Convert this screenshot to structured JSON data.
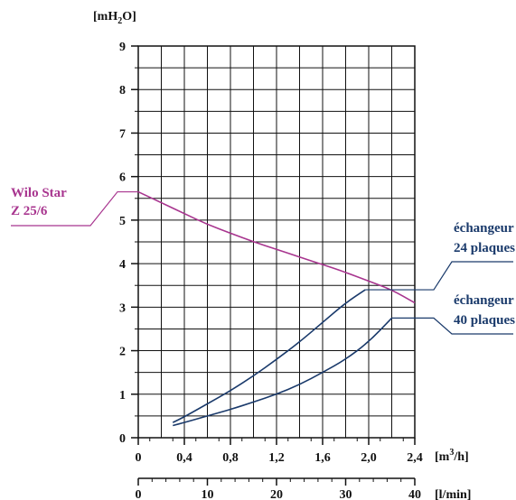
{
  "chart_data": {
    "type": "line",
    "y_unit": {
      "main": "[mH",
      "sub": "2",
      "tail": "O]"
    },
    "x_unit_primary": {
      "main": "[m",
      "sup": "3",
      "tail": "/h]"
    },
    "x_unit_secondary": "[l/min]",
    "xlim": [
      0,
      2.4
    ],
    "ylim": [
      0,
      9
    ],
    "x_ticks": [
      {
        "value": 0,
        "label": "0"
      },
      {
        "value": 0.4,
        "label": "0,4"
      },
      {
        "value": 0.8,
        "label": "0,8"
      },
      {
        "value": 1.2,
        "label": "1,2"
      },
      {
        "value": 1.6,
        "label": "1,6"
      },
      {
        "value": 2.0,
        "label": "2,0"
      },
      {
        "value": 2.4,
        "label": "2,4"
      }
    ],
    "x2_ticks": [
      {
        "value": 0,
        "label": "0"
      },
      {
        "value": 10,
        "label": "10"
      },
      {
        "value": 20,
        "label": "20"
      },
      {
        "value": 30,
        "label": "30"
      },
      {
        "value": 40,
        "label": "40"
      }
    ],
    "x2_lim": [
      0,
      40
    ],
    "y_ticks": [
      {
        "value": 0,
        "label": "0"
      },
      {
        "value": 1,
        "label": "1"
      },
      {
        "value": 2,
        "label": "2"
      },
      {
        "value": 3,
        "label": "3"
      },
      {
        "value": 4,
        "label": "4"
      },
      {
        "value": 5,
        "label": "5"
      },
      {
        "value": 6,
        "label": "6"
      },
      {
        "value": 7,
        "label": "7"
      },
      {
        "value": 8,
        "label": "8"
      },
      {
        "value": 9,
        "label": "9"
      }
    ],
    "grid": true,
    "series": [
      {
        "name": "Wilo Star Z 25/6",
        "label_lines": [
          "Wilo Star",
          "Z 25/6"
        ],
        "color": "#a8358f",
        "label_position": "left",
        "x": [
          0,
          0.2,
          0.4,
          0.6,
          0.8,
          1.0,
          1.2,
          1.4,
          1.6,
          1.8,
          2.0,
          2.2,
          2.4
        ],
        "y": [
          5.65,
          5.4,
          5.15,
          4.9,
          4.7,
          4.5,
          4.33,
          4.15,
          3.98,
          3.8,
          3.6,
          3.4,
          3.1
        ]
      },
      {
        "name": "échangeur 24 plaques",
        "label_lines": [
          "échangeur",
          "24 plaques"
        ],
        "color": "#1a3a6b",
        "label_position": "right",
        "x": [
          0.3,
          0.4,
          0.6,
          0.8,
          1.0,
          1.2,
          1.4,
          1.6,
          1.8,
          1.97
        ],
        "y": [
          0.35,
          0.48,
          0.78,
          1.08,
          1.42,
          1.8,
          2.2,
          2.65,
          3.1,
          3.4
        ]
      },
      {
        "name": "échangeur 40 plaques",
        "label_lines": [
          "échangeur",
          "40 plaques"
        ],
        "color": "#1a3a6b",
        "label_position": "right",
        "x": [
          0.3,
          0.4,
          0.6,
          0.8,
          1.0,
          1.2,
          1.4,
          1.6,
          1.8,
          2.0,
          2.2
        ],
        "y": [
          0.28,
          0.35,
          0.5,
          0.65,
          0.82,
          1.0,
          1.22,
          1.5,
          1.8,
          2.2,
          2.75
        ]
      }
    ]
  }
}
